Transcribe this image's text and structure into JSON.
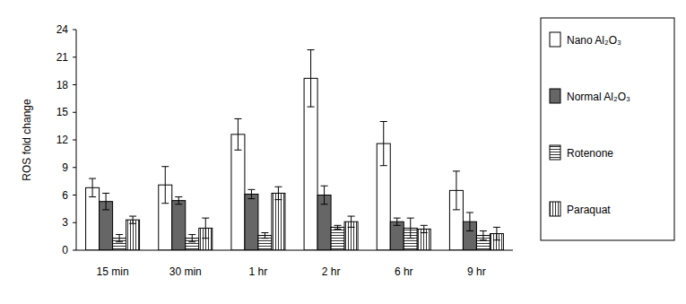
{
  "chart_data": {
    "type": "bar",
    "y_label": "ROS fold change",
    "categories": [
      "15 min",
      "30 min",
      "1 hr",
      "2 hr",
      "6 hr",
      "9 hr"
    ],
    "series": [
      {
        "name": "Nano Al₂O₃",
        "color": "#ffffff",
        "values": [
          6.8,
          7.1,
          12.6,
          18.7,
          11.6,
          6.5
        ],
        "errors": [
          1.0,
          2.0,
          1.7,
          3.1,
          2.4,
          2.1
        ]
      },
      {
        "name": "Normal Al₂O₃",
        "color": "#666666",
        "values": [
          5.3,
          5.4,
          6.1,
          6.0,
          3.1,
          3.1
        ],
        "errors": [
          0.9,
          0.4,
          0.5,
          1.0,
          0.4,
          1.0
        ]
      },
      {
        "name": "Rotenone",
        "color": "#ffffff",
        "values": [
          1.3,
          1.3,
          1.6,
          2.5,
          2.4,
          1.6
        ],
        "errors": [
          0.4,
          0.4,
          0.3,
          0.2,
          1.1,
          0.5
        ]
      },
      {
        "name": "Paraquat",
        "color": "#ffffff",
        "values": [
          3.3,
          2.4,
          6.2,
          3.1,
          2.3,
          1.8
        ],
        "errors": [
          0.4,
          1.1,
          0.7,
          0.6,
          0.4,
          0.7
        ]
      }
    ],
    "ylim": [
      0,
      24
    ],
    "yticks": [
      0,
      3,
      6,
      9,
      12,
      15,
      18,
      21,
      24
    ],
    "grid": false,
    "legend": "right"
  }
}
